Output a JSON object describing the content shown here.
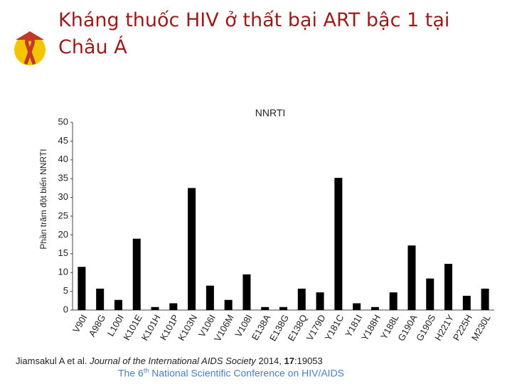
{
  "slide_title": "Kháng thuốc HIV ở thất bại ART bậc 1 tại Châu Á",
  "chart_data": {
    "type": "bar",
    "title": "NNRTI",
    "y_label": "Phần trăm đột biến NNRTI",
    "categories": [
      "V90I",
      "A98G",
      "L100I",
      "K101E",
      "K101H",
      "K101P",
      "K103N",
      "V106I",
      "V106M",
      "V108I",
      "E138A",
      "E138G",
      "E138Q",
      "V179D",
      "Y181C",
      "Y181I",
      "Y188H",
      "Y188L",
      "G190A",
      "G190S",
      "H221Y",
      "P225H",
      "M230L"
    ],
    "values": [
      11.5,
      5.7,
      2.7,
      19,
      0.8,
      1.8,
      32.5,
      6.5,
      2.7,
      9.5,
      0.8,
      0.8,
      5.7,
      4.7,
      35.2,
      1.8,
      0.8,
      4.7,
      17.2,
      8.4,
      12.3,
      3.8,
      5.7
    ],
    "color": "#000000",
    "ylim": [
      0,
      50
    ],
    "yticks": [
      0,
      5,
      10,
      15,
      20,
      25,
      30,
      35,
      40,
      45,
      50
    ],
    "grid": false
  },
  "citation": {
    "authors": "Jiamsakul A et al.",
    "journal": "Journal of the International AIDS Society",
    "year": "2014,",
    "volume": "17",
    "id": ":19053"
  },
  "conference": {
    "prefix": "The 6",
    "superscript": "th",
    "rest": "National Scientific Conference on HIV/AIDS"
  }
}
